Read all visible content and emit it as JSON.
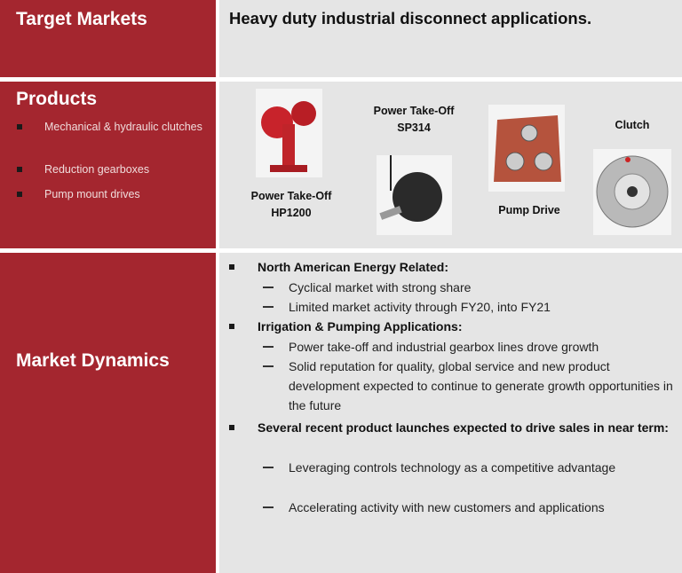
{
  "target_markets": {
    "label": "Target Markets",
    "text": "Heavy duty industrial disconnect applications."
  },
  "products": {
    "label": "Products",
    "bullets": [
      "Mechanical & hydraulic clutches",
      "Reduction gearboxes",
      "Pump mount drives"
    ],
    "items": [
      {
        "lines": [
          "Power Take-Off",
          "HP1200"
        ]
      },
      {
        "lines": [
          "Power Take-Off",
          "SP314"
        ]
      },
      {
        "lines": [
          "Pump Drive"
        ]
      },
      {
        "lines": [
          "Clutch"
        ]
      }
    ]
  },
  "market_dynamics": {
    "label": "Market Dynamics",
    "bullets": [
      {
        "text": "North American Energy Related:",
        "subs": [
          "Cyclical market with strong share",
          "Limited market activity through FY20, into FY21"
        ]
      },
      {
        "text": "Irrigation & Pumping Applications:",
        "subs": [
          "Power take-off and industrial gearbox lines drove growth",
          "Solid reputation for quality, global service and new product development expected to continue to generate growth opportunities in the future"
        ]
      },
      {
        "text": "Several recent product launches expected to drive sales in near term:",
        "subs": [
          "Leveraging controls technology as a competitive advantage",
          "Accelerating activity with new customers and applications"
        ]
      }
    ]
  }
}
